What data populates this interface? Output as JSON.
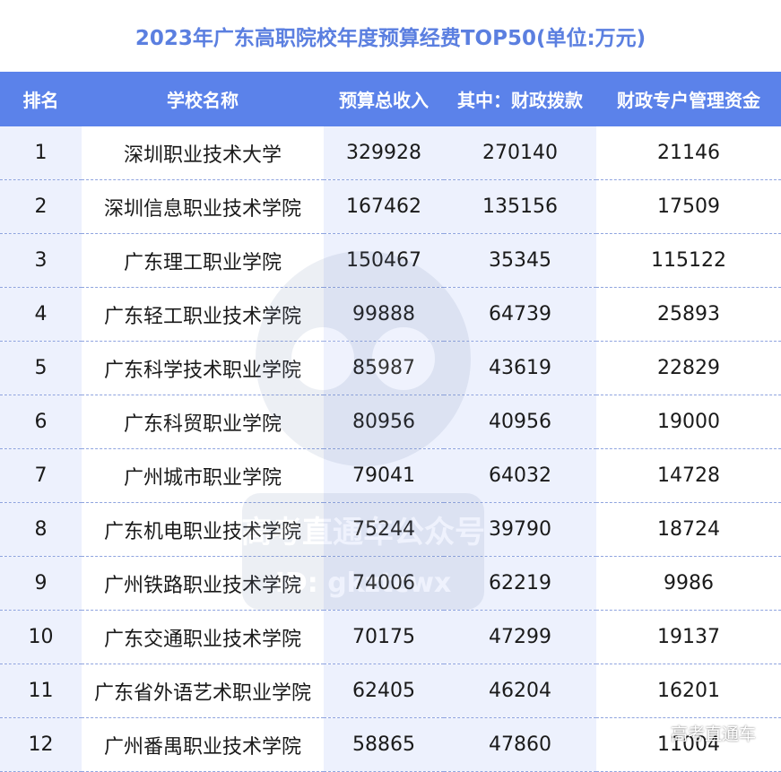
{
  "title": "2023年广东高职院校年度预算经费TOP50(单位:万元)",
  "headers": [
    "排名",
    "学校名称",
    "预算总收入",
    "其中：财政拨款",
    "财政专户管理资金"
  ],
  "rows": [
    [
      "1",
      "深圳职业技术大学",
      "329928",
      "270140",
      "21146"
    ],
    [
      "2",
      "深圳信息职业技术学院",
      "167462",
      "135156",
      "17509"
    ],
    [
      "3",
      "广东理工职业学院",
      "150467",
      "35345",
      "115122"
    ],
    [
      "4",
      "广东轻工职业技术学院",
      "99888",
      "64739",
      "25893"
    ],
    [
      "5",
      "广东科学技术职业学院",
      "85987",
      "43619",
      "22829"
    ],
    [
      "6",
      "广东科贸职业学院",
      "80956",
      "40956",
      "19000"
    ],
    [
      "7",
      "广州城市职业学院",
      "79041",
      "64032",
      "14728"
    ],
    [
      "8",
      "广东机电职业技术学院",
      "75244",
      "39790",
      "18724"
    ],
    [
      "9",
      "广州铁路职业技术学院",
      "74006",
      "62219",
      "9986"
    ],
    [
      "10",
      "广东交通职业技术学院",
      "70175",
      "47299",
      "19137"
    ],
    [
      "11",
      "广东省外语艺术职业学院",
      "62405",
      "46204",
      "16201"
    ],
    [
      "12",
      "广州番禺职业技术学院",
      "58865",
      "47860",
      "11004"
    ]
  ],
  "watermark": {
    "line1": "高考直通车公众号",
    "line2": "ID: gkztcwx",
    "corner": "高考直通车"
  },
  "colors": {
    "title": "#5b7fe0",
    "header_bg": "#5b82ea",
    "stripe": "#edf1fd"
  }
}
